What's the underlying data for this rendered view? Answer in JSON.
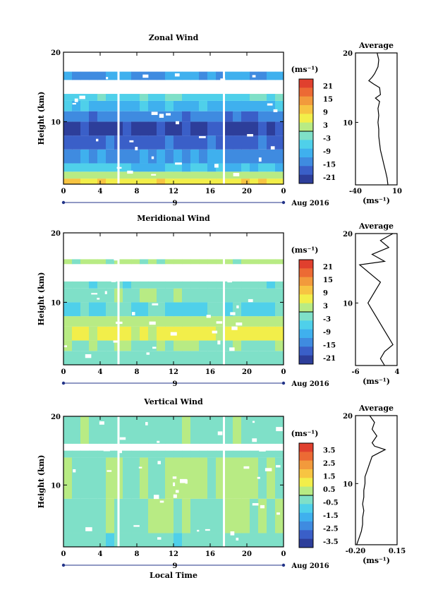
{
  "chart_data": [
    {
      "type": "heatmap",
      "title": "Zonal Wind",
      "ylabel": "Height (km)",
      "xlabel": "",
      "x_ticks": [
        "0",
        "4",
        "8",
        "12",
        "16",
        "20",
        "0"
      ],
      "xlim": [
        0,
        24
      ],
      "y_ticks": [
        "10",
        "20"
      ],
      "ylim": [
        1,
        20
      ],
      "date_marker": "9",
      "date_label": "Aug 2016",
      "colorbar": {
        "unit": "(ms⁻¹)",
        "ticks": [
          "21",
          "15",
          "9",
          "3",
          "-3",
          "-9",
          "-15",
          "-21"
        ],
        "range": [
          -24,
          24
        ]
      },
      "bands": [
        {
          "y0": 1.0,
          "y1": 1.8,
          "value": 7
        },
        {
          "y0": 1.8,
          "y1": 2.8,
          "value": 2
        },
        {
          "y0": 2.8,
          "y1": 4.0,
          "value": -8
        },
        {
          "y0": 4.0,
          "y1": 6.0,
          "value": -13
        },
        {
          "y0": 6.0,
          "y1": 8.0,
          "value": -17
        },
        {
          "y0": 8.0,
          "y1": 10.0,
          "value": -21
        },
        {
          "y0": 10.0,
          "y1": 11.5,
          "value": -15
        },
        {
          "y0": 11.5,
          "y1": 13.0,
          "value": -9
        },
        {
          "y0": 13.0,
          "y1": 14.0,
          "value": -5
        },
        {
          "y0": 16.0,
          "y1": 17.2,
          "value": -12
        }
      ],
      "profile": {
        "title": "Average",
        "xlabel": "(ms⁻¹)",
        "x_ticks": [
          "-40",
          "10"
        ],
        "xlim": [
          -40,
          10
        ],
        "y_ticks": [
          "10",
          "20"
        ],
        "ylim": [
          1,
          20
        ],
        "points": [
          [
            -1,
            1
          ],
          [
            -2,
            2
          ],
          [
            -4,
            3
          ],
          [
            -6,
            4
          ],
          [
            -8,
            5
          ],
          [
            -10,
            6
          ],
          [
            -11,
            7
          ],
          [
            -12,
            8
          ],
          [
            -12,
            9
          ],
          [
            -13,
            10
          ],
          [
            -12,
            11
          ],
          [
            -13,
            12
          ],
          [
            -11,
            13
          ],
          [
            -16,
            13.5
          ],
          [
            -10,
            14
          ],
          [
            -11,
            15
          ],
          [
            -18,
            15.5
          ],
          [
            -24,
            16
          ],
          [
            -20,
            16.5
          ],
          [
            -17,
            17
          ],
          [
            -13,
            18
          ],
          [
            -12,
            19
          ],
          [
            -14,
            20
          ]
        ]
      }
    },
    {
      "type": "heatmap",
      "title": "Meridional Wind",
      "ylabel": "Height (km)",
      "xlabel": "",
      "x_ticks": [
        "0",
        "4",
        "8",
        "12",
        "16",
        "20",
        "0"
      ],
      "xlim": [
        0,
        24
      ],
      "y_ticks": [
        "10",
        "20"
      ],
      "ylim": [
        1,
        20
      ],
      "date_marker": "9",
      "date_label": "Aug 2016",
      "colorbar": {
        "unit": "(ms⁻¹)",
        "ticks": [
          "21",
          "15",
          "9",
          "3",
          "-3",
          "-9",
          "-15",
          "-21"
        ],
        "range": [
          -24,
          24
        ]
      },
      "bands": [
        {
          "y0": 1.0,
          "y1": 3.0,
          "value": -2
        },
        {
          "y0": 3.0,
          "y1": 4.5,
          "value": 0
        },
        {
          "y0": 4.5,
          "y1": 6.5,
          "value": 5
        },
        {
          "y0": 6.5,
          "y1": 8.0,
          "value": 2
        },
        {
          "y0": 8.0,
          "y1": 10.0,
          "value": -4
        },
        {
          "y0": 10.0,
          "y1": 12.0,
          "value": -1
        },
        {
          "y0": 12.0,
          "y1": 13.0,
          "value": -3
        },
        {
          "y0": 15.5,
          "y1": 16.2,
          "value": 1
        }
      ],
      "profile": {
        "title": "Average",
        "xlabel": "(ms⁻¹)",
        "x_ticks": [
          "-6",
          "4"
        ],
        "xlim": [
          -6,
          4
        ],
        "y_ticks": [
          "10",
          "20"
        ],
        "ylim": [
          1,
          20
        ],
        "points": [
          [
            1,
            1
          ],
          [
            0,
            2
          ],
          [
            1,
            3
          ],
          [
            3,
            4
          ],
          [
            2,
            5
          ],
          [
            1,
            6
          ],
          [
            0,
            7
          ],
          [
            -1,
            8
          ],
          [
            -2,
            9
          ],
          [
            -3,
            10
          ],
          [
            -2,
            11
          ],
          [
            -1,
            12
          ],
          [
            0,
            13
          ],
          [
            -2,
            14
          ],
          [
            -4,
            15
          ],
          [
            -5,
            15.5
          ],
          [
            1,
            16
          ],
          [
            -2,
            17
          ],
          [
            2,
            18
          ],
          [
            0,
            19
          ],
          [
            3,
            20
          ]
        ]
      }
    },
    {
      "type": "heatmap",
      "title": "Vertical Wind",
      "ylabel": "Height (km)",
      "xlabel": "Local Time",
      "x_ticks": [
        "0",
        "4",
        "8",
        "12",
        "16",
        "20",
        "0"
      ],
      "xlim": [
        0,
        24
      ],
      "y_ticks": [
        "10",
        "20"
      ],
      "ylim": [
        1,
        20
      ],
      "date_marker": "9",
      "date_label": "Aug 2016",
      "colorbar": {
        "unit": "(ms⁻¹)",
        "ticks": [
          "3.5",
          "2.5",
          "1.5",
          "0.5",
          "-0.5",
          "-1.5",
          "-2.5",
          "-3.5"
        ],
        "range": [
          -4,
          4
        ]
      },
      "bands": [
        {
          "y0": 1.0,
          "y1": 3.0,
          "value": -0.4
        },
        {
          "y0": 3.0,
          "y1": 8.0,
          "value": -0.1
        },
        {
          "y0": 8.0,
          "y1": 14.0,
          "value": 0.1
        },
        {
          "y0": 14.0,
          "y1": 15.0,
          "value": -0.3
        },
        {
          "y0": 16.0,
          "y1": 20.0,
          "value": -0.2
        }
      ],
      "profile": {
        "title": "Average",
        "xlabel": "(ms⁻¹)",
        "x_ticks": [
          "-0.20",
          "0.15"
        ],
        "xlim": [
          -0.2,
          0.15
        ],
        "y_ticks": [
          "10",
          "20"
        ],
        "ylim": [
          1,
          20
        ],
        "points": [
          [
            -0.19,
            1
          ],
          [
            -0.17,
            2
          ],
          [
            -0.15,
            3
          ],
          [
            -0.14,
            4
          ],
          [
            -0.14,
            5
          ],
          [
            -0.13,
            6
          ],
          [
            -0.14,
            7
          ],
          [
            -0.13,
            8
          ],
          [
            -0.13,
            9
          ],
          [
            -0.12,
            10
          ],
          [
            -0.12,
            11
          ],
          [
            -0.1,
            12
          ],
          [
            -0.08,
            13
          ],
          [
            -0.06,
            14
          ],
          [
            0.05,
            15
          ],
          [
            -0.04,
            15.5
          ],
          [
            -0.06,
            16
          ],
          [
            -0.02,
            17
          ],
          [
            -0.06,
            18
          ],
          [
            -0.04,
            19
          ],
          [
            -0.08,
            20
          ]
        ]
      }
    }
  ]
}
